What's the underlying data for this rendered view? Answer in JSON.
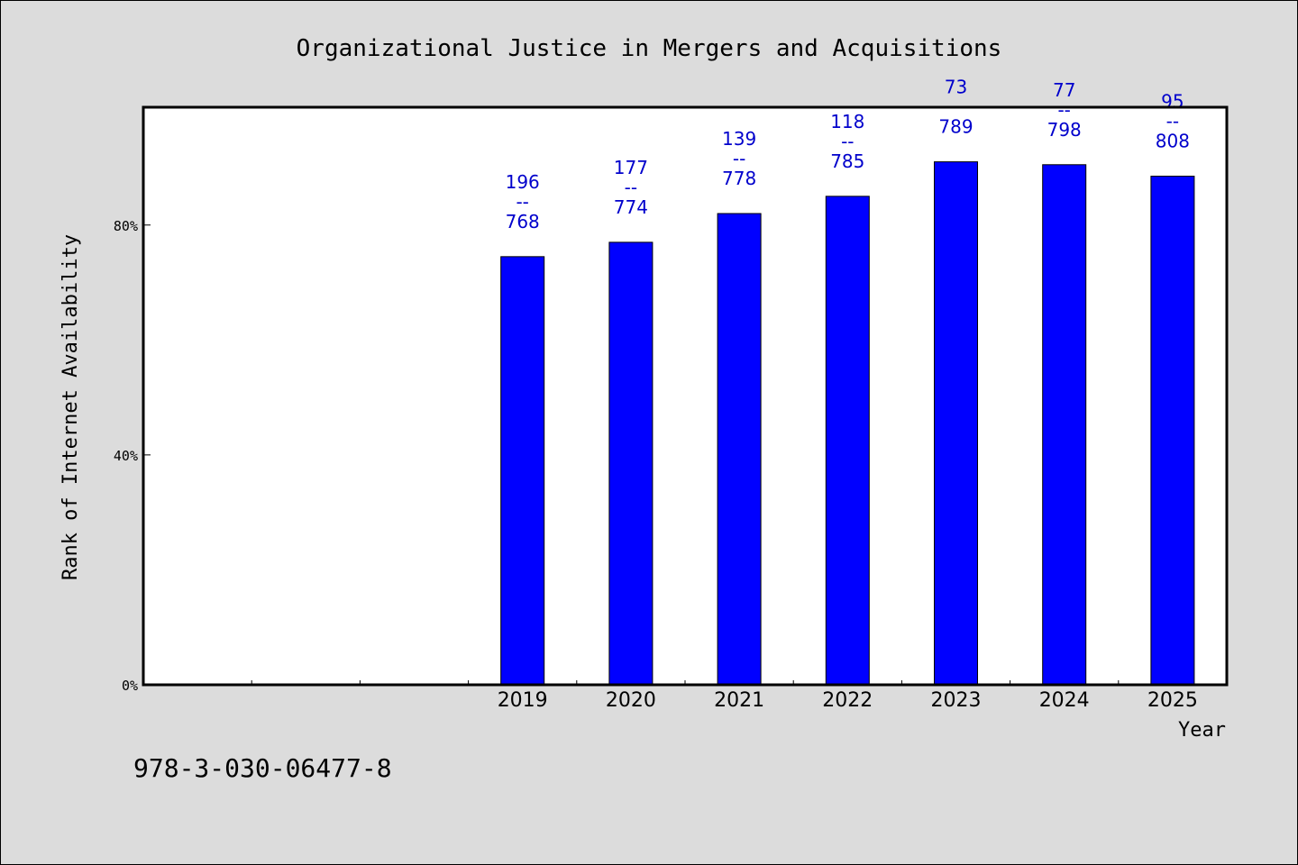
{
  "chart_data": {
    "type": "bar",
    "title": "Organizational Justice in Mergers and Acquisitions",
    "xlabel": "Year",
    "ylabel": "Rank of Internet Availability",
    "categories": [
      "2019",
      "2020",
      "2021",
      "2022",
      "2023",
      "2024",
      "2025"
    ],
    "values": [
      74.5,
      77,
      82,
      85,
      91,
      90.5,
      88.5
    ],
    "labels": [
      {
        "top": "196",
        "bottom": "768"
      },
      {
        "top": "177",
        "bottom": "774"
      },
      {
        "top": "139",
        "bottom": "778"
      },
      {
        "top": "118",
        "bottom": "785"
      },
      {
        "top": "73",
        "bottom": "789"
      },
      {
        "top": "77",
        "bottom": "798"
      },
      {
        "top": "95",
        "bottom": "808"
      }
    ],
    "label_separator": "--",
    "yticks": [
      {
        "value": 0,
        "label": "0%"
      },
      {
        "value": 40,
        "label": "40%"
      },
      {
        "value": 80,
        "label": "80%"
      }
    ],
    "ylim": [
      0,
      100.5
    ],
    "empty_slots_before": 3,
    "grid": false,
    "bar_color": "#0000ff",
    "label_color": "#0000cc"
  },
  "footer": {
    "isbn": "978-3-030-06477-8"
  }
}
